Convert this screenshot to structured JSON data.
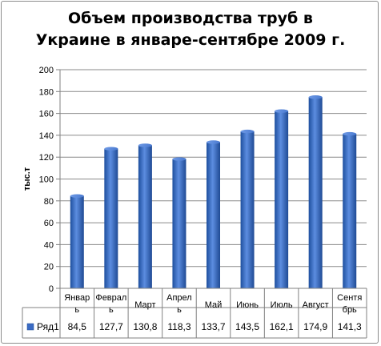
{
  "chart_data": {
    "type": "bar",
    "title_lines": [
      "Объем производства труб в",
      "Украине в январе-сентябре 2009 г."
    ],
    "ylabel": "тыс.т",
    "ylim": [
      0,
      200
    ],
    "yticks": [
      0,
      20,
      40,
      60,
      80,
      100,
      120,
      140,
      160,
      180,
      200
    ],
    "grid": true,
    "legend": "data-table",
    "categories": [
      [
        "Январ",
        "ь"
      ],
      [
        "Феврал",
        "ь"
      ],
      [
        "Март"
      ],
      [
        "Апрел",
        "ь"
      ],
      [
        "Май"
      ],
      [
        "Июнь"
      ],
      [
        "Июль"
      ],
      [
        "Август"
      ],
      [
        "Сентя",
        "брь"
      ]
    ],
    "series": [
      {
        "name": "Ряд1",
        "color": "#3a6bc4",
        "values": [
          84.5,
          127.7,
          130.8,
          118.3,
          133.7,
          143.5,
          162.1,
          174.9,
          141.3
        ],
        "value_labels": [
          "84,5",
          "127,7",
          "130,8",
          "118,3",
          "133,7",
          "143,5",
          "162,1",
          "174,9",
          "141,3"
        ]
      }
    ]
  }
}
